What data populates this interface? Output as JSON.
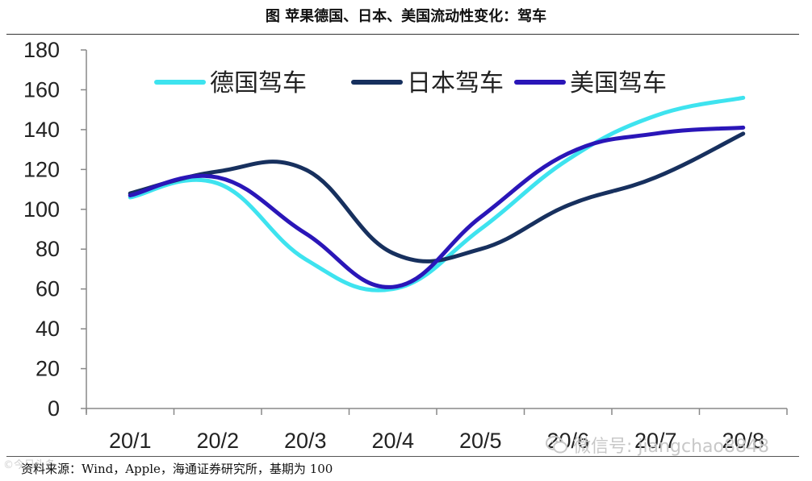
{
  "header": {
    "title": "图 苹果德国、日本、美国流动性变化：驾车"
  },
  "footer": {
    "source": "资料来源：Wind，Apple，海通证券研究所，基期为 100",
    "corner_mark": "©今日头条",
    "watermark_text": "微信号: jiangchao8848"
  },
  "chart_data": {
    "type": "line",
    "title": "",
    "xlabel": "",
    "ylabel": "",
    "ylim": [
      0,
      180
    ],
    "y_ticks": [
      0,
      20,
      40,
      60,
      80,
      100,
      120,
      140,
      160,
      180
    ],
    "categories": [
      "20/1",
      "20/2",
      "20/3",
      "20/4",
      "20/5",
      "20/6",
      "20/7",
      "20/8"
    ],
    "grid": false,
    "legend_position": "top",
    "series": [
      {
        "name": "德国驾车",
        "color": "#3ee3ef",
        "values": [
          106,
          113,
          75,
          60,
          90,
          125,
          147,
          156
        ]
      },
      {
        "name": "日本驾车",
        "color": "#17305e",
        "values": [
          108,
          119,
          120,
          78,
          80,
          102,
          116,
          138
        ]
      },
      {
        "name": "美国驾车",
        "color": "#2a16b8",
        "values": [
          107,
          116,
          88,
          61,
          96,
          128,
          138,
          141
        ]
      }
    ]
  }
}
